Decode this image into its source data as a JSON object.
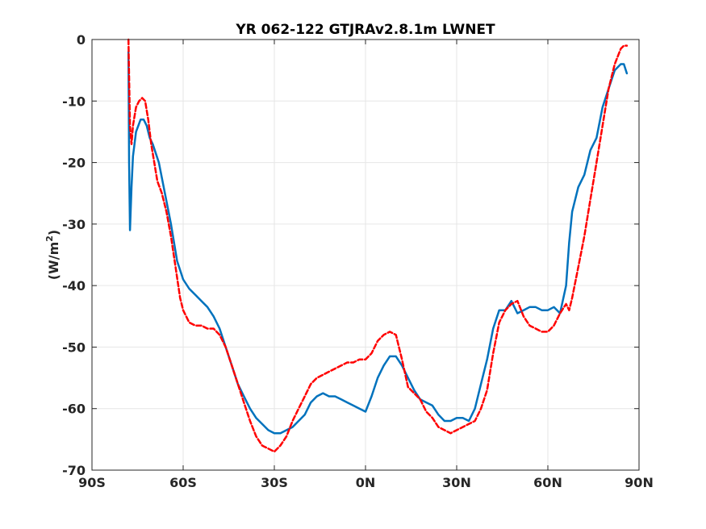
{
  "chart_data": {
    "type": "line",
    "title": "YR 062-122 GTJRAv2.8.1m LWNET",
    "xlabel": "",
    "ylabel_text": "(W/m",
    "ylabel_sup": "2",
    "ylabel_close": ")",
    "xlim": [
      -90,
      90
    ],
    "ylim": [
      -70,
      0
    ],
    "grid": true,
    "x_ticks": [
      -90,
      -60,
      -30,
      0,
      30,
      60,
      90
    ],
    "x_tick_labels": [
      "90S",
      "60S",
      "30S",
      "0N",
      "30N",
      "60N",
      "90N"
    ],
    "y_ticks": [
      0,
      -10,
      -20,
      -30,
      -40,
      -50,
      -60,
      -70
    ],
    "y_tick_labels": [
      "0",
      "-10",
      "-20",
      "-30",
      "-40",
      "-50",
      "-60",
      "-70"
    ],
    "series": [
      {
        "color": "#0072bd",
        "style": "solid",
        "x": [
          -78,
          -77.8,
          -77.5,
          -77,
          -76.5,
          -75.5,
          -74,
          -73,
          -72,
          -71,
          -70,
          -68,
          -66,
          -64,
          -62,
          -60,
          -58,
          -56,
          -54,
          -52,
          -50,
          -48,
          -46,
          -44,
          -42,
          -40,
          -38,
          -36,
          -34,
          -32,
          -30,
          -28,
          -26,
          -24,
          -22,
          -20,
          -18,
          -16,
          -14,
          -12,
          -10,
          -8,
          -6,
          -4,
          -2,
          0,
          2,
          4,
          6,
          8,
          10,
          12,
          14,
          16,
          18,
          20,
          22,
          24,
          26,
          28,
          30,
          32,
          34,
          36,
          38,
          40,
          42,
          44,
          46,
          48,
          50,
          52,
          54,
          56,
          58,
          60,
          62,
          64,
          66,
          67,
          68,
          70,
          72,
          74,
          76,
          78,
          80,
          82,
          84,
          85,
          86
        ],
        "values": [
          -2,
          -20,
          -31,
          -24,
          -19,
          -15,
          -13,
          -13,
          -14,
          -16,
          -17,
          -20,
          -25,
          -30,
          -36,
          -39,
          -40.5,
          -41.5,
          -42.5,
          -43.5,
          -45,
          -47,
          -50,
          -53,
          -56,
          -58,
          -60,
          -61.5,
          -62.5,
          -63.5,
          -64,
          -64,
          -63.5,
          -63,
          -62,
          -61,
          -59,
          -58,
          -57.5,
          -58,
          -58,
          -58.5,
          -59,
          -59.5,
          -60,
          -60.5,
          -58,
          -55,
          -53,
          -51.5,
          -51.5,
          -53,
          -55,
          -57,
          -58.5,
          -59,
          -59.5,
          -61,
          -62,
          -62,
          -61.5,
          -61.5,
          -62,
          -60,
          -56,
          -52,
          -47,
          -44,
          -44,
          -42.5,
          -44.5,
          -44,
          -43.5,
          -43.5,
          -44,
          -44,
          -43.5,
          -44.5,
          -40,
          -33,
          -28,
          -24,
          -22,
          -18,
          -16,
          -11,
          -8,
          -5,
          -4,
          -4,
          -5.5
        ]
      },
      {
        "color": "#ff0000",
        "style": "dashed",
        "x": [
          -78,
          -77.8,
          -77.5,
          -77,
          -76.5,
          -75.5,
          -74.5,
          -73.5,
          -72.5,
          -71.5,
          -70.5,
          -69.5,
          -68.5,
          -67,
          -65.5,
          -64,
          -62.5,
          -61,
          -60,
          -58,
          -56,
          -54,
          -52,
          -50,
          -48,
          -46,
          -44,
          -42,
          -40,
          -38,
          -36,
          -34,
          -32,
          -30,
          -28,
          -26,
          -24,
          -22,
          -20,
          -18,
          -16,
          -14,
          -12,
          -10,
          -8,
          -6,
          -4,
          -2,
          0,
          2,
          4,
          6,
          8,
          10,
          12,
          14,
          16,
          18,
          20,
          22,
          24,
          26,
          28,
          30,
          32,
          34,
          36,
          38,
          40,
          42,
          44,
          46,
          48,
          50,
          52,
          54,
          56,
          58,
          60,
          62,
          64,
          66,
          67,
          68,
          70,
          72,
          74,
          76,
          78,
          80,
          82,
          84,
          85,
          86
        ],
        "values": [
          0,
          -6,
          -14,
          -17,
          -14,
          -11,
          -10,
          -9.5,
          -10,
          -13,
          -17,
          -20,
          -23,
          -25,
          -28,
          -32,
          -37,
          -42,
          -44,
          -46,
          -46.5,
          -46.5,
          -47,
          -47,
          -48,
          -50,
          -53,
          -56,
          -59,
          -62,
          -64.5,
          -66,
          -66.5,
          -67,
          -66,
          -64.5,
          -62,
          -60,
          -58,
          -56,
          -55,
          -54.5,
          -54,
          -53.5,
          -53,
          -52.5,
          -52.5,
          -52,
          -52,
          -51,
          -49,
          -48,
          -47.5,
          -48,
          -52,
          -56.5,
          -57.5,
          -58.5,
          -60.5,
          -61.5,
          -63,
          -63.5,
          -64,
          -63.5,
          -63,
          -62.5,
          -62,
          -60,
          -57,
          -51,
          -46,
          -44,
          -43,
          -42.5,
          -45,
          -46.5,
          -47,
          -47.5,
          -47.5,
          -46.5,
          -44.5,
          -43,
          -44,
          -42,
          -37,
          -32,
          -26,
          -20,
          -14,
          -8,
          -4,
          -1.5,
          -1,
          -1
        ]
      }
    ]
  }
}
